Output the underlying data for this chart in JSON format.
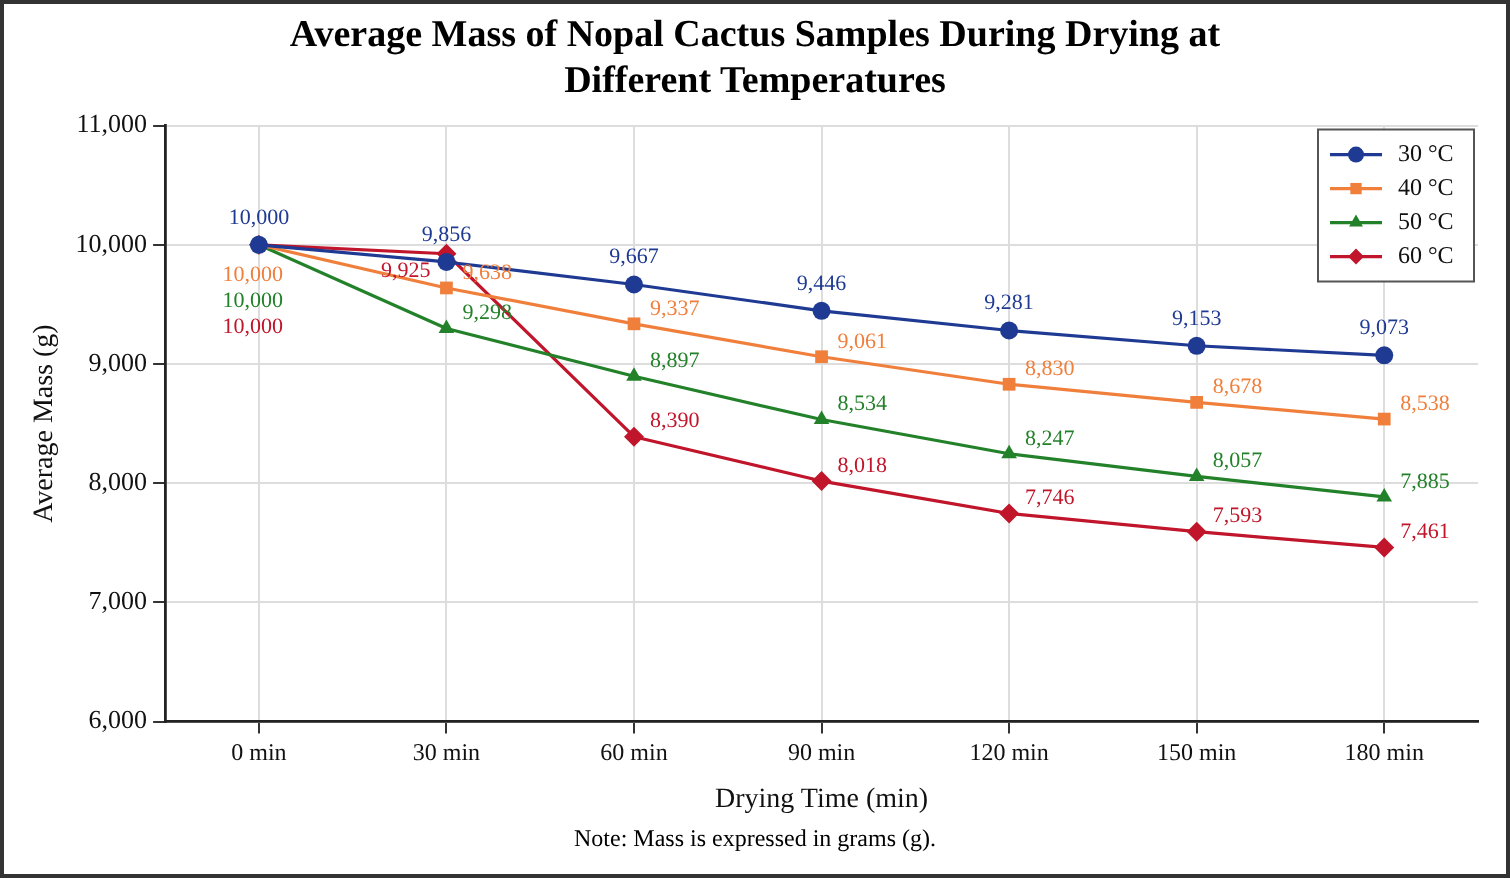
{
  "chart_data": {
    "type": "line",
    "title": "Average Mass of Nopal Cactus Samples During Drying at Different Temperatures",
    "xlabel": "Drying Time (min)",
    "ylabel": "Average Mass (g)",
    "categories": [
      "0 min",
      "30 min",
      "60 min",
      "90 min",
      "120 min",
      "150 min",
      "180 min"
    ],
    "series": [
      {
        "name": "30 °C",
        "color": "#1f3a93",
        "marker": "circle",
        "values": [
          10000,
          9856,
          9667,
          9446,
          9281,
          9153,
          9073
        ],
        "value_labels": [
          "10,000",
          "9,856",
          "9,667",
          "9,446",
          "9,281",
          "9,153",
          "9,073"
        ]
      },
      {
        "name": "40 °C",
        "color": "#f07f3c",
        "marker": "square",
        "values": [
          10000,
          9638,
          9337,
          9061,
          8830,
          8678,
          8538
        ],
        "value_labels": [
          "10,000",
          "9,638",
          "9,337",
          "9,061",
          "8,830",
          "8,678",
          "8,538"
        ]
      },
      {
        "name": "50 °C",
        "color": "#23812a",
        "marker": "triangle",
        "values": [
          10000,
          9298,
          8897,
          8534,
          8247,
          8057,
          7885
        ],
        "value_labels": [
          "10,000",
          "9,298",
          "8,897",
          "8,534",
          "8,247",
          "8,057",
          "7,885"
        ]
      },
      {
        "name": "60 °C",
        "color": "#c0152a",
        "marker": "diamond",
        "values": [
          10000,
          9925,
          8390,
          8018,
          7746,
          7593,
          7461
        ],
        "value_labels": [
          "10,000",
          "9,925",
          "8,390",
          "8,018",
          "7,746",
          "7,593",
          "7,461"
        ]
      }
    ],
    "ylim": [
      6000,
      11000
    ],
    "yticks": [
      {
        "value": 6000,
        "label": "6,000"
      },
      {
        "value": 7000,
        "label": "7,000"
      },
      {
        "value": 8000,
        "label": "8,000"
      },
      {
        "value": 9000,
        "label": "9,000"
      },
      {
        "value": 10000,
        "label": "10,000"
      },
      {
        "value": 11000,
        "label": "11,000"
      }
    ],
    "grid": true,
    "legend": "top right",
    "line_style": "solid",
    "annotations": [
      "Note: Mass is expressed in grams (g)."
    ]
  }
}
